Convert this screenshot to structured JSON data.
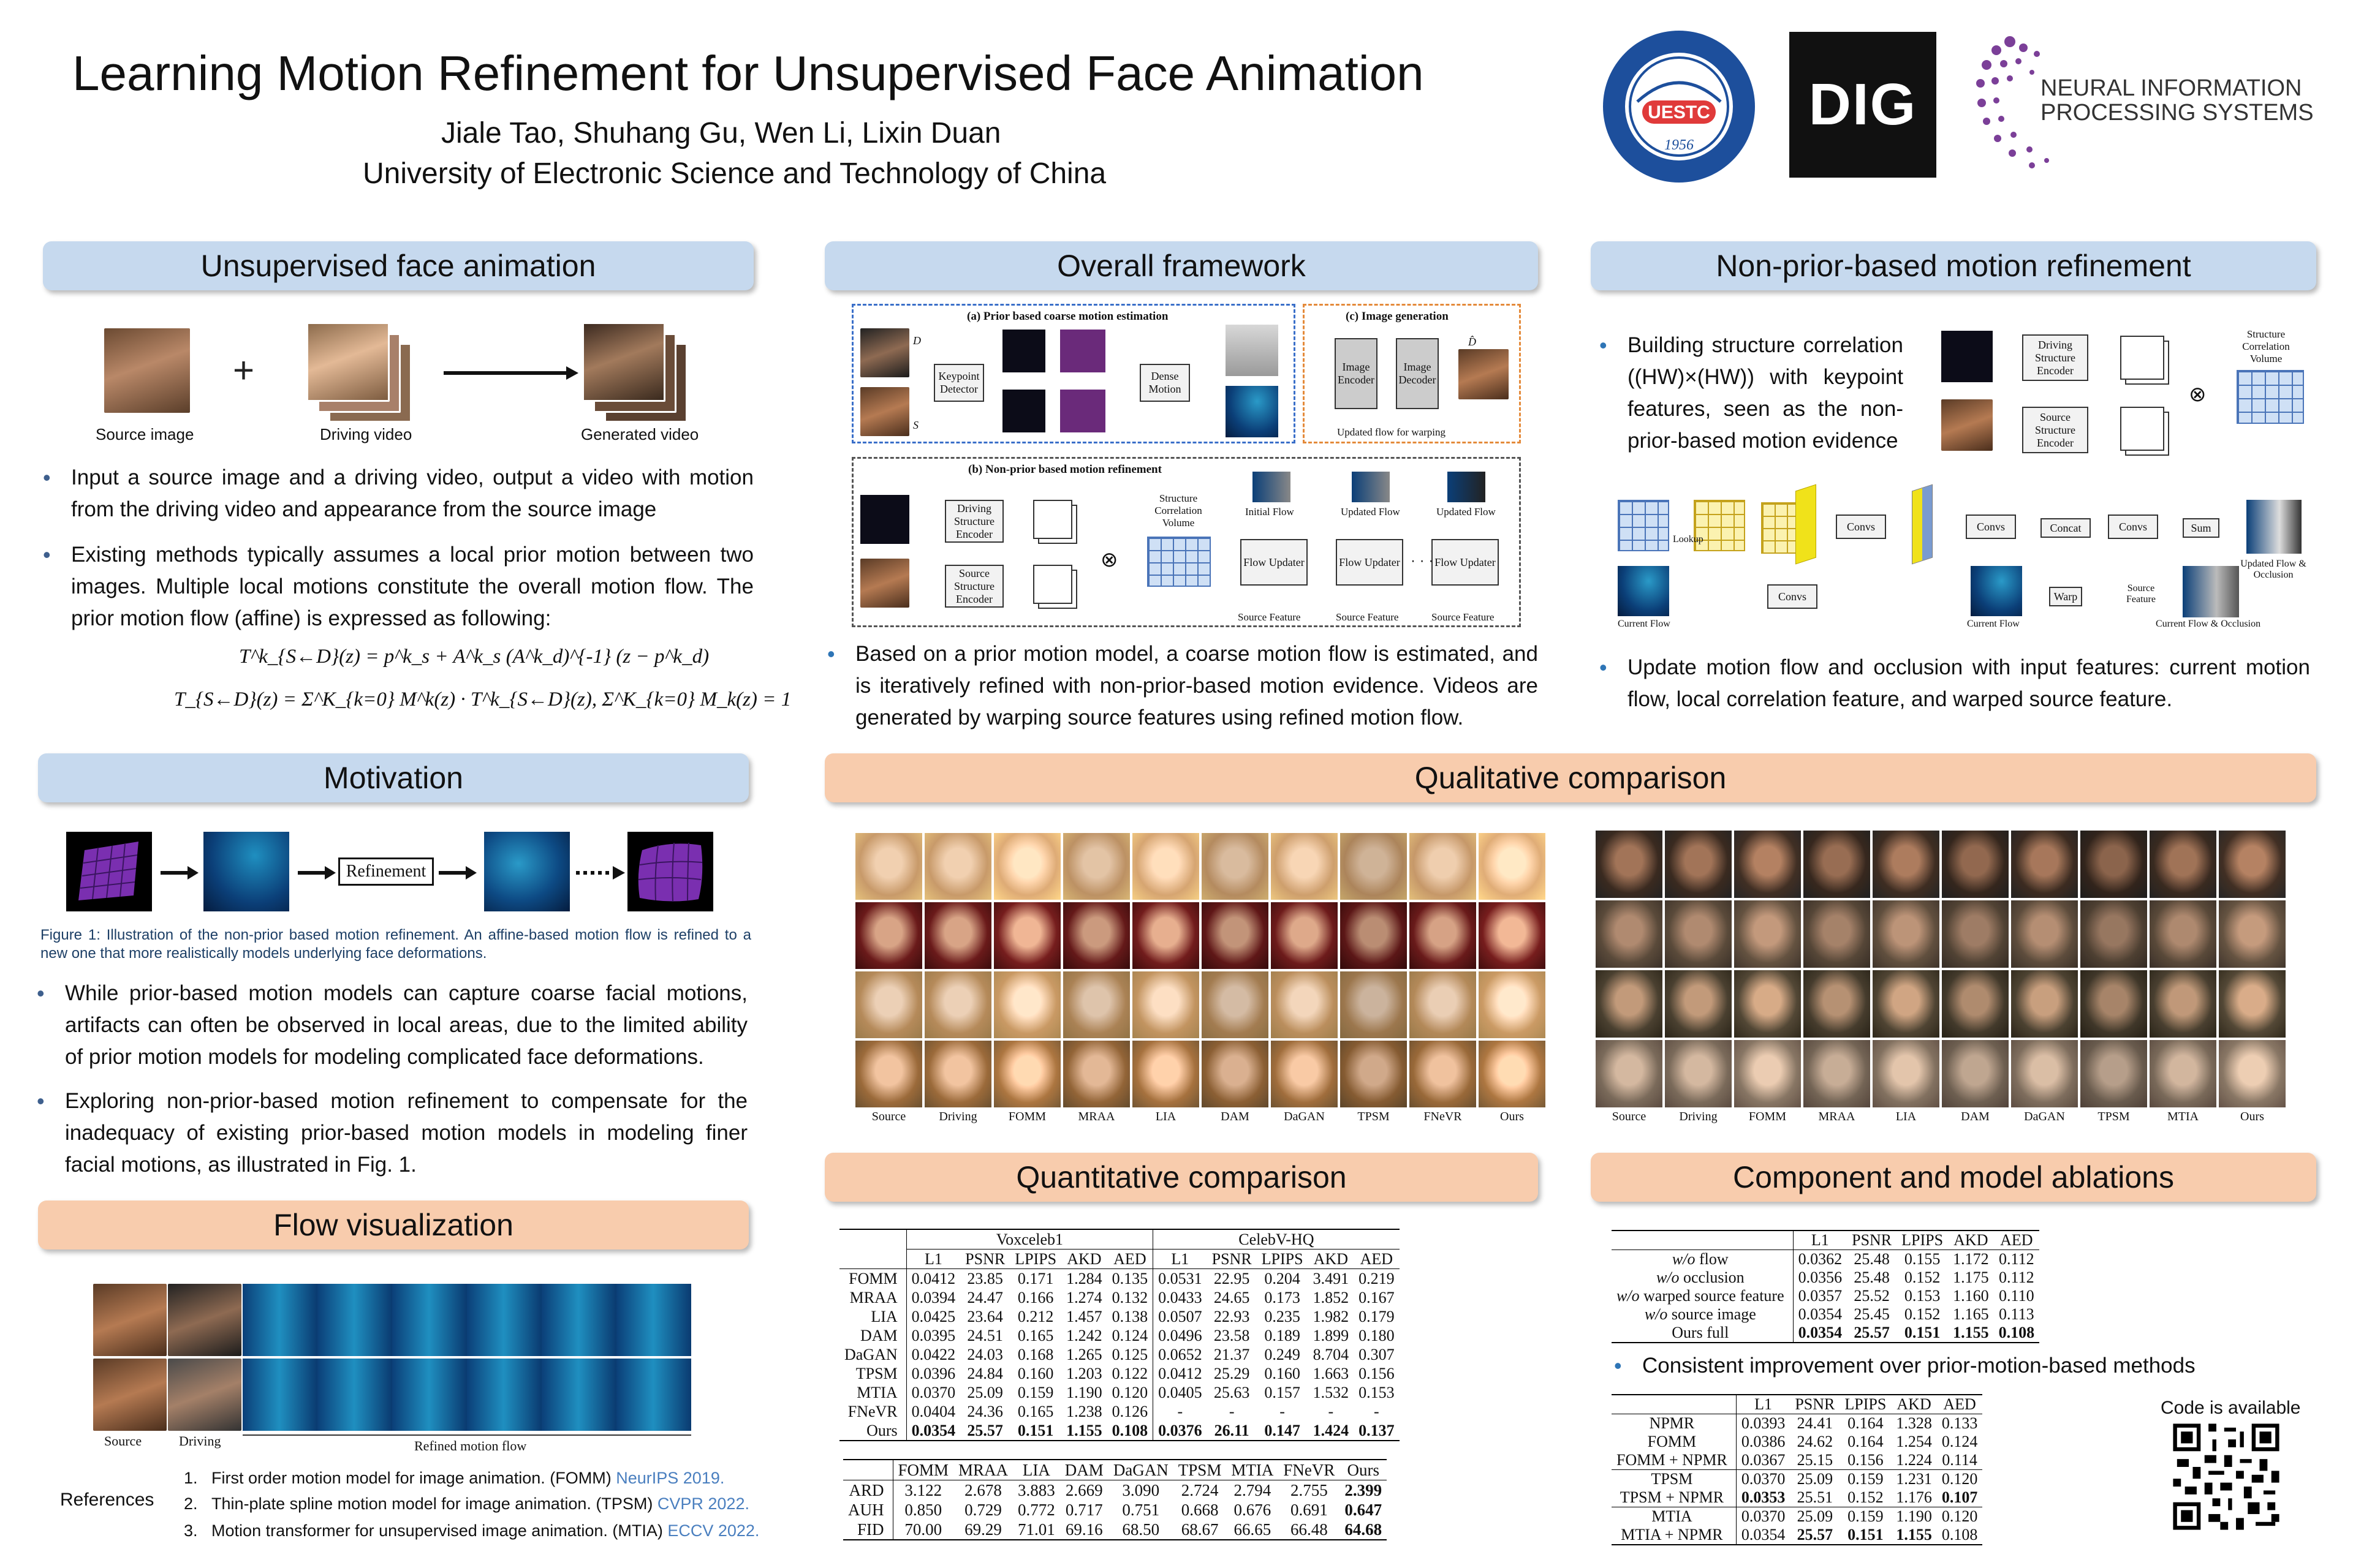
{
  "header": {
    "title": "Learning Motion Refinement for Unsupervised Face Animation",
    "authors": "Jiale Tao, Shuhang Gu, Wen Li, Lixin Duan",
    "affiliation": "University of Electronic Science and Technology of China",
    "logos": {
      "uestc_text": "UESTC",
      "uestc_year": "1956",
      "dig": "DIG",
      "neurips_line1": "NEURAL INFORMATION",
      "neurips_line2": "PROCESSING SYSTEMS"
    }
  },
  "colors": {
    "blue_header": "#c6d9ee",
    "peach_header": "#f8ccad",
    "link": "#4a7fbf"
  },
  "sections": {
    "unsupervised": {
      "title": "Unsupervised face animation",
      "labels": [
        "Source image",
        "Driving video",
        "Generated video"
      ],
      "plus": "+",
      "bullets": [
        "Input a source image and a driving video, output a video with motion from the driving video and appearance from the source image",
        "Existing methods typically assumes a local prior motion between two images. Multiple local motions constitute the overall motion flow. The prior motion flow (affine) is expressed as following:"
      ],
      "eq1": "T^k_{S←D}(z) = p^k_s + A^k_s (A^k_d)^{-1} (z − p^k_d)",
      "eq2": "T_{S←D}(z) = Σ^K_{k=0} M^k(z) · T^k_{S←D}(z), Σ^K_{k=0} M_k(z) = 1"
    },
    "motivation": {
      "title": "Motivation",
      "box": "Refinement",
      "caption": "Figure 1: Illustration of the non-prior based motion refinement. An affine-based motion flow is refined to a new one that more realistically models underlying face deformations.",
      "bullets": [
        "While prior-based motion models can capture coarse facial motions, artifacts can often be observed in local areas, due to the limited ability of prior motion models for modeling complicated face deformations.",
        "Exploring non-prior-based motion refinement to compensate for the inadequacy of existing prior-based motion models in modeling finer facial motions, as illustrated in Fig. 1."
      ]
    },
    "flowvis": {
      "title": "Flow visualization",
      "labels": [
        "Source",
        "Driving",
        "Refined motion flow"
      ]
    },
    "references": {
      "label": "References",
      "items": [
        {
          "num": "1.",
          "text": "First order motion model for image animation. (FOMM)",
          "venue": "NeurIPS 2019."
        },
        {
          "num": "2.",
          "text": "Thin-plate spline motion model for image animation. (TPSM)",
          "venue": "CVPR 2022."
        },
        {
          "num": "3.",
          "text": "Motion transformer for unsupervised image animation. (MTIA)",
          "venue": "ECCV 2022."
        }
      ]
    },
    "framework": {
      "title": "Overall framework",
      "part_a": "(a) Prior based coarse motion estimation",
      "part_b": "(b) Non-prior based motion refinement",
      "part_c": "(c) Image generation",
      "boxes": {
        "kp": "Keypoint Detector",
        "dense": "Dense Motion",
        "enc": "Image Encoder",
        "dec": "Image Decoder",
        "dse": "Driving Structure Encoder",
        "sse": "Source Structure Encoder",
        "scv": "Structure Correlation Volume",
        "fu": "Flow Updater"
      },
      "labels": {
        "d": "D",
        "s": "S",
        "dhat": "D̂",
        "updated_flow_warping": "Updated flow for warping",
        "initial_flow": "Initial Flow",
        "updated_flow": "Updated Flow",
        "source_feature": "Source Feature",
        "dots": "· · ·"
      },
      "bullets": [
        "Based on a prior motion model, a coarse motion flow is estimated, and is iteratively refined with non-prior-based motion evidence. Videos are generated by warping source features using refined motion flow."
      ]
    },
    "nonprior": {
      "title": "Non-prior-based motion refinement",
      "bullet1": "Building structure correlation ((HW)×(HW)) with keypoint features, seen as the non-prior-based motion evidence",
      "bullet2": "Update motion flow and occlusion with input features: current motion flow, local correlation feature, and warped source feature.",
      "labels": {
        "dse": "Driving Structure Encoder",
        "sse": "Source Structure Encoder",
        "scv": "Structure Correlation Volume",
        "lookup": "Lookup",
        "convs": "Convs",
        "concat": "Concat",
        "sum": "Sum",
        "warp": "Warp",
        "current_flow": "Current Flow",
        "source_feature": "Source Feature",
        "current_flow_occ": "Current Flow & Occlusion",
        "updated_flow_occ": "Updated Flow & Occlusion"
      }
    },
    "qualitative": {
      "title": "Qualitative comparison",
      "left_labels": [
        "Source",
        "Driving",
        "FOMM",
        "MRAA",
        "LIA",
        "DAM",
        "DaGAN",
        "TPSM",
        "FNeVR",
        "Ours"
      ],
      "right_labels": [
        "Source",
        "Driving",
        "FOMM",
        "MRAA",
        "LIA",
        "DAM",
        "DaGAN",
        "TPSM",
        "MTIA",
        "Ours"
      ]
    },
    "quantitative": {
      "title": "Quantitative comparison",
      "group1": "Voxceleb1",
      "group2": "CelebV-HQ",
      "cols": [
        "L1",
        "PSNR",
        "LPIPS",
        "AKD",
        "AED",
        "L1",
        "PSNR",
        "LPIPS",
        "AKD",
        "AED"
      ],
      "rows": [
        {
          "name": "FOMM",
          "v": [
            "0.0412",
            "23.85",
            "0.171",
            "1.284",
            "0.135",
            "0.0531",
            "22.95",
            "0.204",
            "3.491",
            "0.219"
          ]
        },
        {
          "name": "MRAA",
          "v": [
            "0.0394",
            "24.47",
            "0.166",
            "1.274",
            "0.132",
            "0.0433",
            "24.65",
            "0.173",
            "1.852",
            "0.167"
          ]
        },
        {
          "name": "LIA",
          "v": [
            "0.0425",
            "23.64",
            "0.212",
            "1.457",
            "0.138",
            "0.0507",
            "22.93",
            "0.235",
            "1.982",
            "0.179"
          ]
        },
        {
          "name": "DAM",
          "v": [
            "0.0395",
            "24.51",
            "0.165",
            "1.242",
            "0.124",
            "0.0496",
            "23.58",
            "0.189",
            "1.899",
            "0.180"
          ]
        },
        {
          "name": "DaGAN",
          "v": [
            "0.0422",
            "24.03",
            "0.168",
            "1.265",
            "0.125",
            "0.0652",
            "21.37",
            "0.249",
            "8.704",
            "0.307"
          ]
        },
        {
          "name": "TPSM",
          "v": [
            "0.0396",
            "24.84",
            "0.160",
            "1.203",
            "0.122",
            "0.0412",
            "25.29",
            "0.160",
            "1.663",
            "0.156"
          ]
        },
        {
          "name": "MTIA",
          "v": [
            "0.0370",
            "25.09",
            "0.159",
            "1.190",
            "0.120",
            "0.0405",
            "25.63",
            "0.157",
            "1.532",
            "0.153"
          ]
        },
        {
          "name": "FNeVR",
          "v": [
            "0.0404",
            "24.36",
            "0.165",
            "1.238",
            "0.126",
            "-",
            "-",
            "-",
            "-",
            "-"
          ]
        },
        {
          "name": "Ours",
          "v": [
            "0.0354",
            "25.57",
            "0.151",
            "1.155",
            "0.108",
            "0.0376",
            "26.11",
            "0.147",
            "1.424",
            "0.137"
          ]
        }
      ],
      "t2_cols": [
        "FOMM",
        "MRAA",
        "LIA",
        "DAM",
        "DaGAN",
        "TPSM",
        "MTIA",
        "FNeVR",
        "Ours"
      ],
      "t2_rows": [
        {
          "name": "ARD",
          "v": [
            "3.122",
            "2.678",
            "3.883",
            "2.669",
            "3.090",
            "2.724",
            "2.794",
            "2.755",
            "2.399"
          ]
        },
        {
          "name": "AUH",
          "v": [
            "0.850",
            "0.729",
            "0.772",
            "0.717",
            "0.751",
            "0.668",
            "0.676",
            "0.691",
            "0.647"
          ]
        },
        {
          "name": "FID",
          "v": [
            "70.00",
            "69.29",
            "71.01",
            "69.16",
            "68.50",
            "68.67",
            "66.65",
            "66.48",
            "64.68"
          ]
        }
      ]
    },
    "ablation": {
      "title": "Component and model ablations",
      "cols": [
        "L1",
        "PSNR",
        "LPIPS",
        "AKD",
        "AED"
      ],
      "rows": [
        {
          "name": "w/o flow",
          "v": [
            "0.0362",
            "25.48",
            "0.155",
            "1.172",
            "0.112"
          ]
        },
        {
          "name": "w/o occlusion",
          "v": [
            "0.0356",
            "25.48",
            "0.152",
            "1.175",
            "0.112"
          ]
        },
        {
          "name": "w/o warped source feature",
          "v": [
            "0.0357",
            "25.52",
            "0.153",
            "1.160",
            "0.110"
          ]
        },
        {
          "name": "w/o source image",
          "v": [
            "0.0354",
            "25.45",
            "0.152",
            "1.165",
            "0.113"
          ]
        },
        {
          "name": "Ours full",
          "v": [
            "0.0354",
            "25.57",
            "0.151",
            "1.155",
            "0.108"
          ]
        }
      ],
      "bullet": "Consistent improvement over prior-motion-based methods",
      "rows2": [
        {
          "name": "NPMR",
          "v": [
            "0.0393",
            "24.41",
            "0.164",
            "1.328",
            "0.133"
          ]
        },
        {
          "name": "FOMM",
          "v": [
            "0.0386",
            "24.62",
            "0.164",
            "1.254",
            "0.124"
          ]
        },
        {
          "name": "FOMM + NPMR",
          "v": [
            "0.0367",
            "25.15",
            "0.156",
            "1.224",
            "0.114"
          ]
        },
        {
          "name": "TPSM",
          "v": [
            "0.0370",
            "25.09",
            "0.159",
            "1.231",
            "0.120"
          ]
        },
        {
          "name": "TPSM + NPMR",
          "v": [
            "0.0353",
            "25.51",
            "0.152",
            "1.176",
            "0.107"
          ]
        },
        {
          "name": "MTIA",
          "v": [
            "0.0370",
            "25.09",
            "0.159",
            "1.190",
            "0.120"
          ]
        },
        {
          "name": "MTIA + NPMR",
          "v": [
            "0.0354",
            "25.57",
            "0.151",
            "1.155",
            "0.108"
          ]
        }
      ],
      "code": "Code is available"
    }
  }
}
